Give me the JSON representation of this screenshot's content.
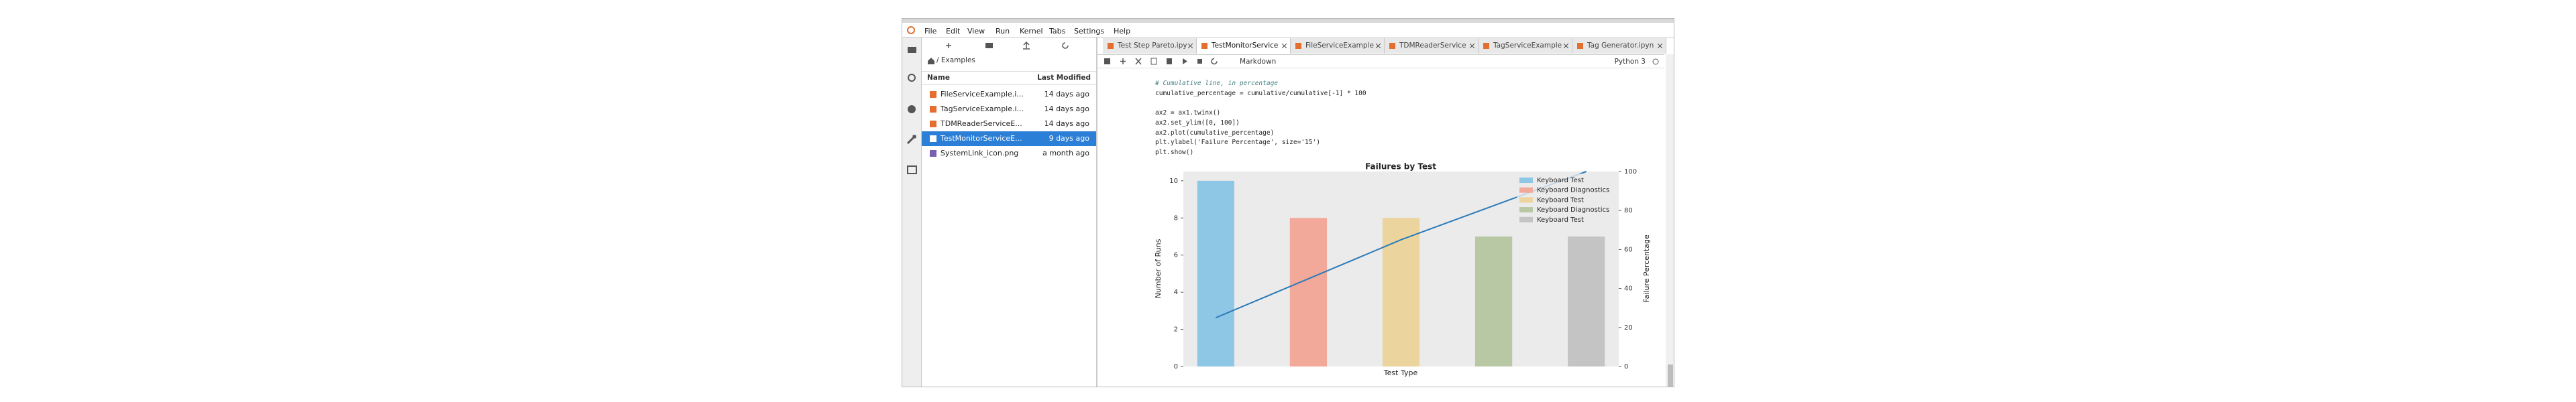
{
  "menu": [
    "File",
    "Edit",
    "View",
    "Run",
    "Kernel",
    "Tabs",
    "Settings",
    "Help"
  ],
  "file_browser": {
    "breadcrumb": "/ Examples",
    "columns": [
      "Name",
      "Last Modified"
    ],
    "files": [
      {
        "name": "FileServiceExample.i...",
        "modified": "14 days ago"
      },
      {
        "name": "TagServiceExample.i...",
        "modified": "14 days ago"
      },
      {
        "name": "TDMReaderServiceE...",
        "modified": "14 days ago"
      },
      {
        "name": "TestMonitorServiceE...",
        "modified": "9 days ago",
        "selected": true
      },
      {
        "name": "SystemLink_icon.png",
        "modified": "a month ago"
      }
    ]
  },
  "tabs": [
    {
      "label": "Test Step Pareto.ipy"
    },
    {
      "label": "TestMonitorService",
      "active": true
    },
    {
      "label": "FileServiceExample"
    },
    {
      "label": "TDMReaderService"
    },
    {
      "label": "TagServiceExample"
    },
    {
      "label": "Tag Generator.ipyn"
    }
  ],
  "toolbar": {
    "cell_type": "Markdown",
    "kernel": "Python 3"
  },
  "code": [
    [
      "# Cumulative line, in percentage",
      "cumulative_percentage = cumulative/cumulative[-1] * 100"
    ],
    [
      "ax2 = ax1.twinx()",
      "ax2.set_ylim([0, 100])",
      "ax2.plot(cumulative_percentage)",
      "plt.ylabel('Failure Percentage', size='15')",
      "plt.show()"
    ]
  ],
  "chart_data": {
    "type": "bar",
    "title": "Failures by Test",
    "xlabel": "Test Type",
    "ylabel": "Number of Runs",
    "y2label": "Failure Percentage",
    "categories": [
      null,
      null,
      null,
      null,
      null
    ],
    "values": [
      10,
      8,
      8,
      7,
      7
    ],
    "colors": [
      "#8ec6e6",
      "#f2a99a",
      "#ecd49e",
      "#b8c8a4",
      "#c4c4c4"
    ],
    "legend": [
      "Keyboard Test",
      "Keyboard Diagnostics",
      "Keyboard Test",
      "Keyboard Diagnostics",
      "Keyboard Test"
    ],
    "legend_position": "upper right",
    "series": [
      {
        "values": [
          25,
          45,
          65,
          82.5,
          100
        ],
        "color": "#2a7ab8",
        "axis": "y2"
      }
    ],
    "ylim": [
      0,
      10.5
    ],
    "yticks": [
      0,
      2,
      4,
      6,
      8,
      10
    ],
    "y2lim": [
      0,
      100
    ],
    "y2ticks": [
      0,
      20,
      40,
      60,
      80,
      100
    ],
    "grid": false
  }
}
